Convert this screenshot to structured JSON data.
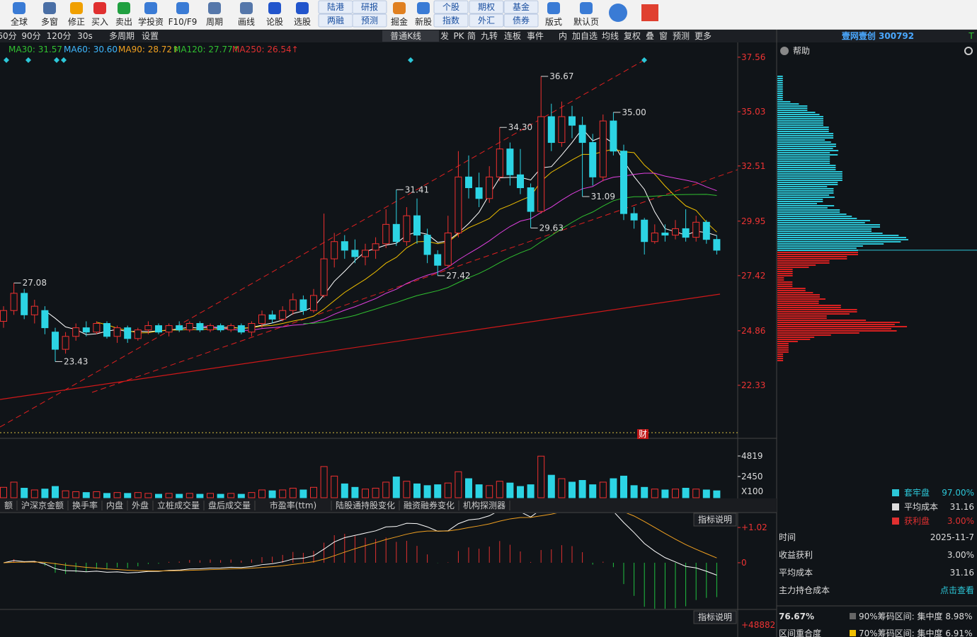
{
  "toolbar": [
    "全球",
    "多窗",
    "修正",
    "买入",
    "卖出",
    "学投资",
    "F10/F9",
    "周期",
    "画线",
    "论股",
    "选股",
    [
      "陆港",
      "两融"
    ],
    [
      "研报",
      "预测"
    ],
    "掘金",
    "新股",
    [
      "个股",
      "指数"
    ],
    [
      "期权",
      "外汇"
    ],
    [
      "基金",
      "债券"
    ],
    "版式",
    "默认页"
  ],
  "period_bar": [
    "60分",
    "90分",
    "120分",
    "30s",
    "多周期",
    "设置",
    "普通K线",
    "发",
    "PK",
    "简",
    "九转",
    "连板",
    "事件",
    "内",
    "加自选",
    "均线",
    "复权",
    "叠",
    "窗",
    "预测",
    "更多"
  ],
  "ma_legend": [
    "MA30: 31.57",
    "MA60: 30.60",
    "MA90: 28.72↑",
    "MA120: 27.77↑",
    "MA250: 26.54↑"
  ],
  "price_chart": {
    "ylim": [
      20.13,
      38.18
    ],
    "yticks": [
      37.56,
      35.03,
      32.51,
      29.95,
      27.42,
      24.86,
      22.33
    ],
    "high_low_labels": [
      "36.67",
      "35.00",
      "34.30",
      "31.41",
      "31.09",
      "29.63",
      "27.42",
      "27.08",
      "23.43"
    ],
    "marker": "财",
    "candles": [
      [
        25.3,
        25.8,
        26.0,
        25.0
      ],
      [
        25.8,
        26.6,
        27.08,
        25.6
      ],
      [
        26.6,
        25.6,
        26.8,
        25.4
      ],
      [
        25.6,
        26.0,
        26.3,
        25.2
      ],
      [
        25.8,
        25.0,
        26.0,
        24.7
      ],
      [
        24.8,
        24.0,
        25.0,
        23.43
      ],
      [
        24.0,
        24.6,
        24.8,
        23.8
      ],
      [
        24.6,
        25.0,
        25.2,
        24.4
      ],
      [
        25.0,
        24.8,
        25.3,
        24.6
      ],
      [
        24.8,
        25.2,
        25.3,
        24.7
      ],
      [
        25.2,
        24.6,
        25.3,
        24.5
      ],
      [
        24.6,
        25.0,
        25.1,
        24.3
      ],
      [
        25.0,
        24.5,
        25.1,
        24.3
      ],
      [
        24.5,
        24.9,
        25.0,
        24.4
      ],
      [
        24.9,
        25.1,
        25.3,
        24.7
      ],
      [
        25.1,
        24.8,
        25.2,
        24.7
      ],
      [
        24.8,
        25.1,
        25.2,
        24.6
      ],
      [
        25.1,
        24.9,
        25.3,
        24.8
      ],
      [
        24.9,
        25.2,
        25.3,
        24.8
      ],
      [
        25.2,
        24.9,
        25.3,
        24.8
      ],
      [
        24.9,
        25.1,
        25.2,
        24.8
      ],
      [
        25.1,
        24.9,
        25.2,
        24.8
      ],
      [
        24.9,
        25.1,
        25.2,
        24.8
      ],
      [
        25.1,
        24.8,
        25.2,
        24.7
      ],
      [
        24.8,
        25.2,
        25.3,
        24.6
      ],
      [
        25.2,
        25.6,
        25.8,
        25.0
      ],
      [
        25.6,
        25.4,
        25.8,
        25.2
      ],
      [
        25.4,
        25.8,
        26.0,
        25.3
      ],
      [
        25.8,
        26.3,
        26.6,
        25.6
      ],
      [
        26.3,
        25.8,
        26.5,
        25.6
      ],
      [
        25.8,
        26.5,
        26.8,
        25.7
      ],
      [
        26.5,
        28.2,
        30.3,
        26.4
      ],
      [
        28.2,
        29.0,
        29.4,
        27.8
      ],
      [
        29.0,
        28.6,
        29.3,
        28.2
      ],
      [
        28.6,
        28.3,
        29.1,
        28.0
      ],
      [
        28.3,
        28.6,
        28.9,
        27.9
      ],
      [
        28.6,
        28.9,
        29.2,
        28.2
      ],
      [
        28.9,
        29.8,
        30.5,
        28.7
      ],
      [
        29.8,
        29.0,
        31.41,
        28.8
      ],
      [
        29.0,
        30.2,
        30.6,
        28.8
      ],
      [
        30.2,
        29.3,
        31.0,
        28.9
      ],
      [
        29.3,
        28.4,
        29.6,
        28.0
      ],
      [
        28.4,
        27.9,
        28.6,
        27.42
      ],
      [
        27.9,
        29.4,
        30.2,
        27.8
      ],
      [
        29.4,
        32.0,
        33.2,
        29.2
      ],
      [
        32.0,
        31.5,
        33.0,
        31.0
      ],
      [
        31.5,
        31.0,
        32.2,
        30.6
      ],
      [
        31.0,
        32.0,
        32.5,
        30.8
      ],
      [
        32.0,
        33.3,
        34.3,
        31.8
      ],
      [
        33.3,
        32.1,
        33.6,
        31.6
      ],
      [
        32.1,
        31.5,
        33.3,
        31.2
      ],
      [
        31.5,
        30.4,
        31.7,
        29.63
      ],
      [
        30.4,
        34.8,
        36.67,
        30.3
      ],
      [
        34.8,
        33.6,
        35.4,
        33.2
      ],
      [
        33.6,
        34.8,
        35.5,
        33.4
      ],
      [
        34.8,
        34.4,
        35.3,
        33.8
      ],
      [
        34.4,
        33.6,
        34.8,
        31.09
      ],
      [
        33.6,
        32.0,
        34.0,
        31.6
      ],
      [
        32.0,
        34.6,
        34.9,
        31.8
      ],
      [
        34.6,
        33.2,
        35.0,
        33.0
      ],
      [
        33.2,
        30.3,
        33.5,
        30.0
      ],
      [
        30.3,
        30.0,
        30.6,
        29.6
      ],
      [
        30.0,
        29.0,
        30.1,
        28.4
      ],
      [
        29.0,
        29.4,
        29.8,
        28.9
      ],
      [
        29.4,
        29.3,
        29.8,
        29.0
      ],
      [
        29.3,
        29.6,
        30.0,
        29.1
      ],
      [
        29.6,
        29.2,
        30.5,
        29.0
      ],
      [
        29.2,
        29.9,
        30.2,
        29.0
      ],
      [
        29.9,
        29.1,
        30.0,
        28.9
      ],
      [
        29.1,
        28.6,
        29.3,
        28.4
      ]
    ]
  },
  "volume": {
    "ylim": [
      0,
      6450
    ],
    "yticks": [
      4819,
      2450
    ],
    "unit": "X100",
    "values": [
      1200,
      1800,
      1100,
      900,
      1000,
      1300,
      800,
      700,
      600,
      700,
      500,
      600,
      500,
      600,
      500,
      400,
      500,
      400,
      500,
      400,
      500,
      400,
      500,
      400,
      600,
      900,
      800,
      900,
      1100,
      900,
      1200,
      3600,
      2500,
      1600,
      1200,
      1000,
      1100,
      1800,
      2400,
      1900,
      1600,
      1400,
      1500,
      1700,
      3000,
      2200,
      1500,
      1400,
      1900,
      1700,
      1300,
      1500,
      4800,
      2600,
      2200,
      1800,
      2000,
      1500,
      1800,
      2200,
      2500,
      1400,
      1200,
      1000,
      900,
      1000,
      1100,
      1000,
      900,
      800
    ]
  },
  "tabs": [
    "额",
    "沪深京金额",
    "换手率",
    "内盘",
    "外盘",
    "立桩成交量",
    "盘后成交量",
    "市盈率(ttm)",
    "陆股通持股变化",
    "融资融券变化",
    "机构探测器"
  ],
  "macd": {
    "button": "指标说明",
    "ylim": [
      -1.31,
      1.39
    ],
    "yticks": [
      {
        "value": 1.02,
        "label": "+1.02"
      },
      0
    ]
  },
  "lower": {
    "button": "指标说明",
    "tick_label": "+48882"
  },
  "side": {
    "title": "壹网壹创 300792",
    "flag": "T",
    "help": "帮助",
    "legend": [
      {
        "label": "套牢盘",
        "value": "97.00%"
      },
      {
        "label": "平均成本",
        "value": "31.16"
      },
      {
        "label": "获利盘",
        "value": "3.00%"
      }
    ],
    "rows": [
      {
        "label": "时间",
        "value": "2025-11-7"
      },
      {
        "label": "收益获利",
        "value": "3.00%"
      },
      {
        "label": "平均成本",
        "value": "31.16"
      },
      {
        "label": "主力持仓成本",
        "value": "点击查看"
      }
    ],
    "bottom": [
      {
        "left": "76.67%",
        "right": "90%筹码区间: 集中度 8.98%"
      },
      {
        "left": "区间重合度",
        "right": "70%筹码区间: 集中度 6.91%"
      }
    ]
  }
}
